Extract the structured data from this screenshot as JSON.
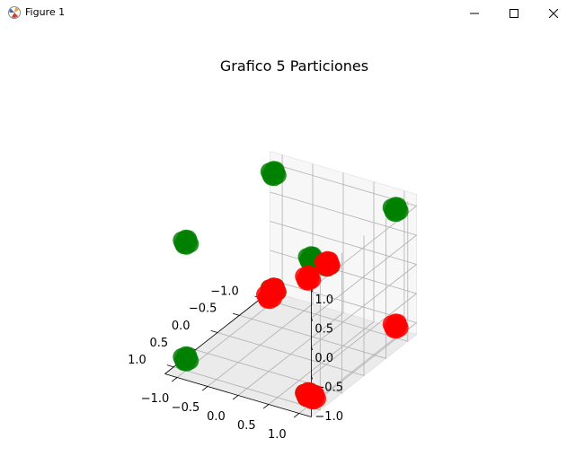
{
  "window": {
    "title": "Figure 1",
    "icons": {
      "app": "matplotlib-figure-icon",
      "minimize": "minimize-icon",
      "maximize": "maximize-icon",
      "close": "close-icon"
    }
  },
  "chart_data": {
    "type": "scatter",
    "title": "Grafico 5 Particiones",
    "xlim": [
      -1.2,
      1.2
    ],
    "ylim": [
      -1.2,
      1.2
    ],
    "zlim": [
      -1.2,
      1.2
    ],
    "x_ticks": [
      "−1.0",
      "−0.5",
      "0.0",
      "0.5",
      "1.0"
    ],
    "y_ticks": [
      "−1.0",
      "−0.5",
      "0.0",
      "0.5",
      "1.0"
    ],
    "z_ticks": [
      "−1.0",
      "−0.5",
      "0.0",
      "0.5",
      "1.0"
    ],
    "grid": true,
    "series": [
      {
        "color": "#008000",
        "points": [
          [
            -1,
            -1,
            1
          ],
          [
            -1,
            1,
            1
          ],
          [
            1,
            -1,
            1
          ],
          [
            1,
            -1,
            -1
          ],
          [
            -1,
            -1,
            -1
          ],
          [
            1,
            1,
            -1
          ],
          [
            -0.6,
            -0.1,
            0.05
          ],
          [
            -0.4,
            0.3,
            0.2
          ]
        ]
      },
      {
        "color": "#ff0000",
        "points": [
          [
            1,
            1,
            1
          ],
          [
            -1,
            1,
            -1
          ],
          [
            -1,
            -1,
            -1
          ],
          [
            1,
            1,
            -1
          ],
          [
            -0.35,
            0.35,
            0.25
          ],
          [
            -0.9,
            -1.0,
            -1.05
          ],
          [
            0.95,
            1.05,
            -1.05
          ]
        ]
      }
    ]
  }
}
